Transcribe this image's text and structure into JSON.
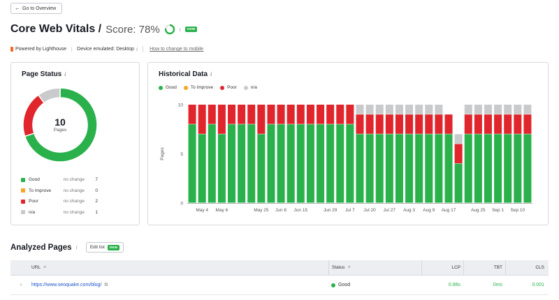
{
  "nav": {
    "back_label": "Go to Overview"
  },
  "header": {
    "title": "Core Web Vitals /",
    "score_label": "Score: 78%",
    "score_value": 78,
    "new_badge": "new"
  },
  "meta": {
    "lighthouse": "Powered by Lighthouse",
    "device": "Device emulated: Desktop",
    "how_link": "How to change to mobile"
  },
  "colors": {
    "good": "#2bb14c",
    "improve": "#f5a623",
    "poor": "#e0262c",
    "na": "#c8cacc"
  },
  "page_status": {
    "title": "Page Status",
    "total": "10",
    "total_label": "Pages",
    "rows": [
      {
        "name": "Good",
        "change": "no change",
        "value": "7",
        "color": "#2bb14c"
      },
      {
        "name": "To Improve",
        "change": "no change",
        "value": "0",
        "color": "#f5a623"
      },
      {
        "name": "Poor",
        "change": "no change",
        "value": "2",
        "color": "#e0262c"
      },
      {
        "name": "n/a",
        "change": "no change",
        "value": "1",
        "color": "#c8cacc"
      }
    ]
  },
  "historical": {
    "title": "Historical Data",
    "legend": [
      "Good",
      "To Improve",
      "Poor",
      "n/a"
    ]
  },
  "chart_data": {
    "type": "bar",
    "stacked": true,
    "ylabel": "Pages",
    "ylim": [
      0,
      10
    ],
    "yticks": [
      0,
      5,
      10
    ],
    "tick_labels": [
      "May 4",
      "May 6",
      "May 25",
      "Jun 8",
      "Jun 15",
      "Jun 29",
      "Jul 7",
      "Jul 20",
      "Jul 27",
      "Aug 3",
      "Aug 9",
      "Aug 17",
      "Aug 25",
      "Sep 1",
      "Sep 10"
    ],
    "tick_positions": [
      1.5,
      3.5,
      7.5,
      9.5,
      11.5,
      14.5,
      16.5,
      18.5,
      20.5,
      22.5,
      24.5,
      26.5,
      29.5,
      31.5,
      33.5
    ],
    "series": [
      {
        "name": "Good",
        "color": "#2bb14c",
        "values": [
          8,
          7,
          8,
          7,
          8,
          8,
          8,
          7,
          8,
          8,
          8,
          8,
          8,
          8,
          8,
          8,
          8,
          7,
          7,
          7,
          7,
          7,
          7,
          7,
          7,
          7,
          7,
          4,
          7,
          7,
          7,
          7,
          7,
          7,
          7
        ]
      },
      {
        "name": "To Improve",
        "color": "#f5a623",
        "values": [
          0,
          0,
          0,
          0,
          0,
          0,
          0,
          0,
          0,
          0,
          0,
          0,
          0,
          0,
          0,
          0,
          0,
          0,
          0,
          0,
          0,
          0,
          0,
          0,
          0,
          0,
          0,
          0,
          0,
          0,
          0,
          0,
          0,
          0,
          0
        ]
      },
      {
        "name": "Poor",
        "color": "#e0262c",
        "values": [
          2,
          3,
          2,
          3,
          2,
          2,
          2,
          3,
          2,
          2,
          2,
          2,
          2,
          2,
          2,
          2,
          2,
          2,
          2,
          2,
          2,
          2,
          2,
          2,
          2,
          2,
          2,
          2,
          2,
          2,
          2,
          2,
          2,
          2,
          2
        ]
      },
      {
        "name": "n/a",
        "color": "#c8cacc",
        "values": [
          0,
          0,
          0,
          0,
          0,
          0,
          0,
          0,
          0,
          0,
          0,
          0,
          0,
          0,
          0,
          0,
          0,
          1,
          1,
          1,
          1,
          1,
          1,
          1,
          1,
          1,
          0,
          1,
          1,
          1,
          1,
          1,
          1,
          1,
          1
        ]
      }
    ]
  },
  "analyzed": {
    "title": "Analyzed Pages",
    "edit_label": "Edit list",
    "new_badge": "new",
    "columns": {
      "url": "URL",
      "status": "Status",
      "lcp": "LCP",
      "tbt": "TBT",
      "cls": "CLS"
    },
    "rows": [
      {
        "url": "https://www.seoquake.com/blog/",
        "status": "Good",
        "lcp": "0.88s",
        "tbt": "0ms",
        "cls": "0.001"
      }
    ]
  }
}
